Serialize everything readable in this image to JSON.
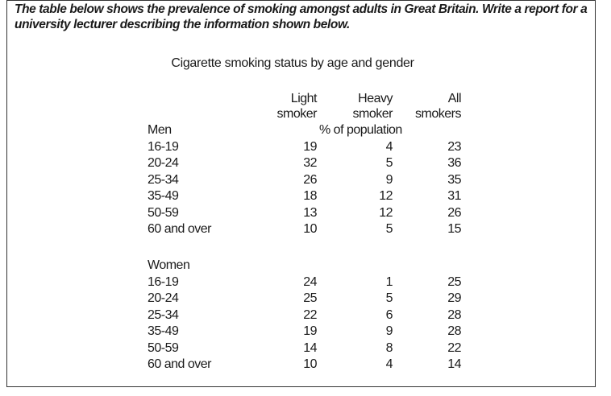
{
  "prompt": "The table below shows the prevalence of smoking amongst adults in Great Britain.  Write a report for a university lecturer describing the information shown below.",
  "table_title": "Cigarette smoking status by age and gender",
  "columns": [
    {
      "line1": "Light",
      "line2": "smoker"
    },
    {
      "line1": "Heavy",
      "line2": "smoker"
    },
    {
      "line1": "All",
      "line2": "smokers"
    }
  ],
  "unit_label": "% of population",
  "groups": [
    {
      "name": "Men",
      "rows": [
        {
          "age": "16-19",
          "light": "19",
          "heavy": "4",
          "all": "23"
        },
        {
          "age": "20-24",
          "light": "32",
          "heavy": "5",
          "all": "36"
        },
        {
          "age": "25-34",
          "light": "26",
          "heavy": "9",
          "all": "35"
        },
        {
          "age": "35-49",
          "light": "18",
          "heavy": "12",
          "all": "31"
        },
        {
          "age": "50-59",
          "light": "13",
          "heavy": "12",
          "all": "26"
        },
        {
          "age": "60 and over",
          "light": "10",
          "heavy": "5",
          "all": "15"
        }
      ]
    },
    {
      "name": "Women",
      "rows": [
        {
          "age": "16-19",
          "light": "24",
          "heavy": "1",
          "all": "25"
        },
        {
          "age": "20-24",
          "light": "25",
          "heavy": "5",
          "all": "29"
        },
        {
          "age": "25-34",
          "light": "22",
          "heavy": "6",
          "all": "28"
        },
        {
          "age": "35-49",
          "light": "19",
          "heavy": "9",
          "all": "28"
        },
        {
          "age": "50-59",
          "light": "14",
          "heavy": "8",
          "all": "22"
        },
        {
          "age": "60 and over",
          "light": "10",
          "heavy": "4",
          "all": "14"
        }
      ]
    }
  ]
}
